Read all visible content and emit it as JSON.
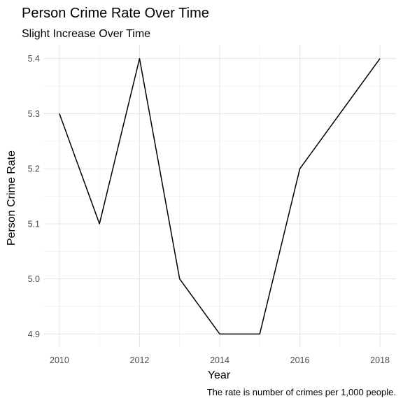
{
  "chart_data": {
    "type": "line",
    "title": "Person Crime Rate Over Time",
    "subtitle": "Slight Increase Over Time",
    "xlabel": "Year",
    "ylabel": "Person Crime Rate",
    "caption": "The rate is number of crimes per 1,000 people.",
    "x": [
      2010,
      2011,
      2012,
      2013,
      2014,
      2015,
      2016,
      2017,
      2018
    ],
    "series": [
      {
        "values": [
          5.3,
          5.1,
          5.4,
          5.0,
          4.9,
          4.9,
          5.2,
          5.3,
          5.4
        ]
      }
    ],
    "xlim": [
      2009.6,
      2018.4
    ],
    "ylim": [
      4.875,
      5.425
    ],
    "xticks": [
      2010,
      2012,
      2014,
      2016,
      2018
    ],
    "xtick_labels": [
      "2010",
      "2012",
      "2014",
      "2016",
      "2018"
    ],
    "yticks": [
      4.9,
      5.0,
      5.1,
      5.2,
      5.3,
      5.4
    ],
    "ytick_labels": [
      "4.9",
      "5.0",
      "5.1",
      "5.2",
      "5.3",
      "5.4"
    ],
    "grid": true,
    "line_color": "#000000",
    "grid_color": "#e6e6e6",
    "legend": "none"
  }
}
